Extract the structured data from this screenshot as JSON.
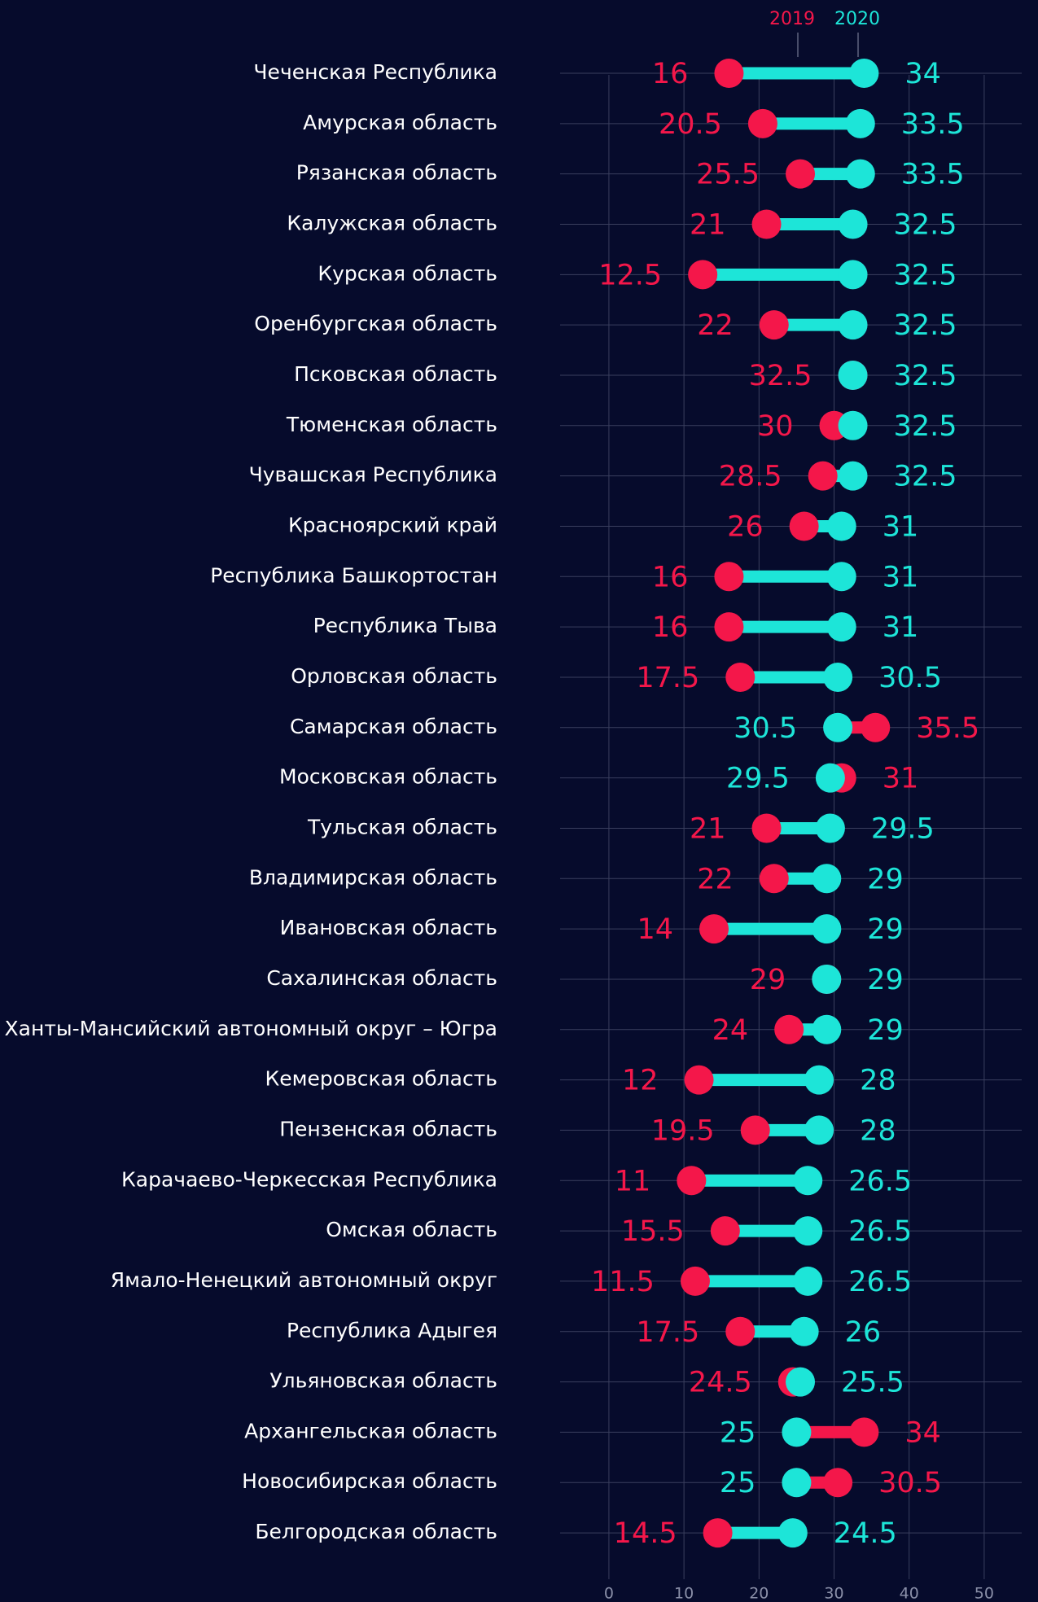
{
  "chart_data": {
    "type": "dumbbell",
    "categories": [
      "Чеченская Республика",
      "Амурская область",
      "Рязанская область",
      "Калужская область",
      "Курская область",
      "Оренбургская область",
      "Псковская область",
      "Тюменская область",
      "Чувашская Республика",
      "Красноярский край",
      "Республика Башкортостан",
      "Республика Тыва",
      "Орловская область",
      "Самарская область",
      "Московская область",
      "Тульская область",
      "Владимирская область",
      "Ивановская область",
      "Сахалинская область",
      "Ханты-Мансийский автономный округ – Югра",
      "Кемеровская область",
      "Пензенская область",
      "Карачаево-Черкесская Республика",
      "Омская область",
      "Ямало-Ненецкий автономный округ",
      "Республика Адыгея",
      "Ульяновская область",
      "Архангельская область",
      "Новосибирская область",
      "Белгородская область"
    ],
    "series": [
      {
        "name": "2019",
        "color": "#f4174a",
        "values": [
          16,
          20.5,
          25.5,
          21,
          12.5,
          22,
          32.5,
          30,
          28.5,
          26,
          16,
          16,
          17.5,
          35.5,
          31,
          21,
          22,
          14,
          29,
          24,
          12,
          19.5,
          11,
          15.5,
          11.5,
          17.5,
          24.5,
          34,
          30.5,
          14.5
        ]
      },
      {
        "name": "2020",
        "color": "#1de5d8",
        "values": [
          34,
          33.5,
          33.5,
          32.5,
          32.5,
          32.5,
          32.5,
          32.5,
          32.5,
          31,
          31,
          31,
          30.5,
          30.5,
          29.5,
          29.5,
          29,
          29,
          29,
          29,
          28,
          28,
          26.5,
          26.5,
          26.5,
          26,
          25.5,
          25,
          25,
          24.5
        ]
      }
    ],
    "xlim": [
      -6.5,
      55
    ],
    "xticks": [
      0,
      10,
      20,
      30,
      40,
      50
    ],
    "grid": true
  }
}
